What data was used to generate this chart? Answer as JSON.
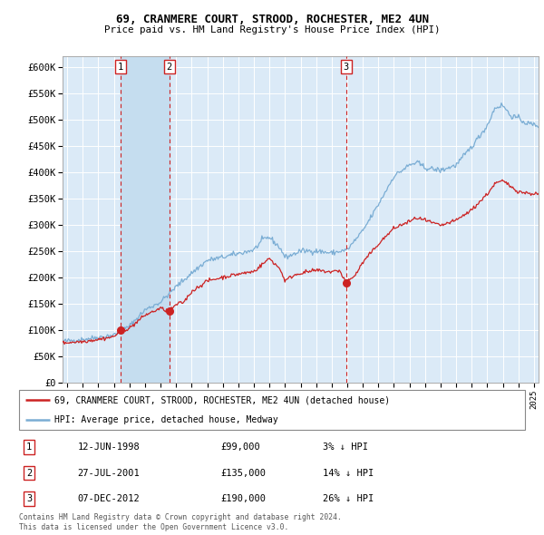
{
  "title1": "69, CRANMERE COURT, STROOD, ROCHESTER, ME2 4UN",
  "title2": "Price paid vs. HM Land Registry's House Price Index (HPI)",
  "legend_label1": "69, CRANMERE COURT, STROOD, ROCHESTER, ME2 4UN (detached house)",
  "legend_label2": "HPI: Average price, detached house, Medway",
  "footer": "Contains HM Land Registry data © Crown copyright and database right 2024.\nThis data is licensed under the Open Government Licence v3.0.",
  "transactions": [
    {
      "num": 1,
      "date": "12-JUN-1998",
      "price": 99000,
      "pct": "3%",
      "dir": "↓",
      "x_year": 1998.45
    },
    {
      "num": 2,
      "date": "27-JUL-2001",
      "price": 135000,
      "pct": "14%",
      "dir": "↓",
      "x_year": 2001.57
    },
    {
      "num": 3,
      "date": "07-DEC-2012",
      "price": 190000,
      "pct": "26%",
      "dir": "↓",
      "x_year": 2012.93
    }
  ],
  "hpi_color": "#7aadd4",
  "price_color": "#cc2222",
  "bg_color": "#dbeaf7",
  "shade_color": "#c5ddef",
  "grid_color": "#ffffff",
  "ylim": [
    0,
    620000
  ],
  "yticks": [
    0,
    50000,
    100000,
    150000,
    200000,
    250000,
    300000,
    350000,
    400000,
    450000,
    500000,
    550000,
    600000
  ],
  "xlim_start": 1994.7,
  "xlim_end": 2025.3
}
